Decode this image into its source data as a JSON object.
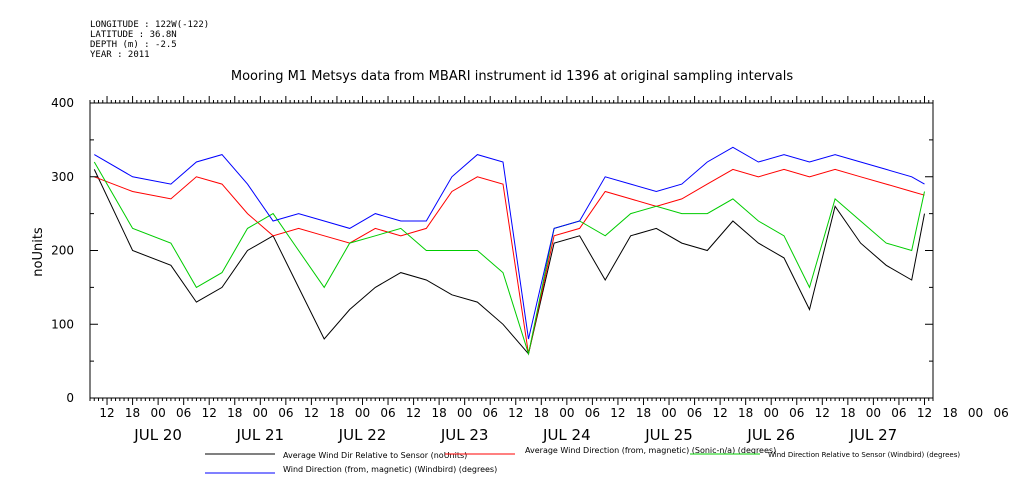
{
  "header": {
    "longitude": "LONGITUDE : 122W(-122)",
    "latitude": "LATITUDE : 36.8N",
    "depth": "DEPTH (m) : -2.5",
    "year": "YEAR : 2011"
  },
  "chart_data": {
    "type": "line",
    "title": "Mooring M1 Metsys data from MBARI instrument id 1396 at original sampling intervals",
    "ylabel": "noUnits",
    "xlabel": "",
    "ylim": [
      0,
      400
    ],
    "xlim": [
      "2011-07-19T08:00",
      "2011-07-27T14:00"
    ],
    "y_ticks": [
      0,
      100,
      200,
      300,
      400
    ],
    "hour_ticks": [
      "12",
      "18",
      "00",
      "06",
      "12",
      "18",
      "00",
      "06",
      "12",
      "18",
      "00",
      "06",
      "12",
      "18",
      "00",
      "06",
      "12",
      "18",
      "00",
      "06",
      "12",
      "18",
      "00",
      "06",
      "12",
      "18",
      "00",
      "06",
      "12",
      "18",
      "00",
      "06",
      "12",
      "18",
      "00",
      "06"
    ],
    "day_labels": [
      "JUL 20",
      "JUL 21",
      "JUL 22",
      "JUL 23",
      "JUL 24",
      "JUL 25",
      "JUL 26",
      "JUL 27"
    ],
    "grid": false,
    "legend_position": "bottom",
    "series": [
      {
        "name": "Average Wind Dir Relative to Sensor (noUnits)",
        "color": "#000000",
        "x": [
          "2011-07-19T09:00",
          "2011-07-19T18:00",
          "2011-07-20T03:00",
          "2011-07-20T09:00",
          "2011-07-20T15:00",
          "2011-07-20T21:00",
          "2011-07-21T03:00",
          "2011-07-21T09:00",
          "2011-07-21T15:00",
          "2011-07-21T21:00",
          "2011-07-22T03:00",
          "2011-07-22T09:00",
          "2011-07-22T15:00",
          "2011-07-22T21:00",
          "2011-07-23T03:00",
          "2011-07-23T09:00",
          "2011-07-23T15:00",
          "2011-07-23T21:00",
          "2011-07-24T03:00",
          "2011-07-24T09:00",
          "2011-07-24T15:00",
          "2011-07-24T21:00",
          "2011-07-25T03:00",
          "2011-07-25T09:00",
          "2011-07-25T15:00",
          "2011-07-25T21:00",
          "2011-07-26T03:00",
          "2011-07-26T09:00",
          "2011-07-26T15:00",
          "2011-07-26T21:00",
          "2011-07-27T03:00",
          "2011-07-27T09:00",
          "2011-07-27T12:00"
        ],
        "values": [
          310,
          200,
          180,
          130,
          150,
          200,
          220,
          150,
          80,
          120,
          150,
          170,
          160,
          140,
          130,
          100,
          60,
          210,
          220,
          160,
          220,
          230,
          210,
          200,
          240,
          210,
          190,
          120,
          260,
          210,
          180,
          160,
          250
        ]
      },
      {
        "name": "Average Wind Direction (from, magnetic) (Sonic-n/a) (degrees)",
        "color": "#ff0000",
        "x": [
          "2011-07-19T09:00",
          "2011-07-19T18:00",
          "2011-07-20T03:00",
          "2011-07-20T09:00",
          "2011-07-20T15:00",
          "2011-07-20T21:00",
          "2011-07-21T03:00",
          "2011-07-21T09:00",
          "2011-07-21T15:00",
          "2011-07-21T21:00",
          "2011-07-22T03:00",
          "2011-07-22T09:00",
          "2011-07-22T15:00",
          "2011-07-22T21:00",
          "2011-07-23T03:00",
          "2011-07-23T09:00",
          "2011-07-23T15:00",
          "2011-07-23T21:00",
          "2011-07-24T03:00",
          "2011-07-24T09:00",
          "2011-07-24T15:00",
          "2011-07-24T21:00",
          "2011-07-25T03:00",
          "2011-07-25T09:00",
          "2011-07-25T15:00",
          "2011-07-25T21:00",
          "2011-07-26T03:00",
          "2011-07-26T09:00",
          "2011-07-26T15:00",
          "2011-07-26T21:00",
          "2011-07-27T03:00",
          "2011-07-27T09:00",
          "2011-07-27T12:00"
        ],
        "values": [
          300,
          280,
          270,
          300,
          290,
          250,
          220,
          230,
          220,
          210,
          230,
          220,
          230,
          280,
          300,
          290,
          60,
          220,
          230,
          280,
          270,
          260,
          270,
          290,
          310,
          300,
          310,
          300,
          310,
          300,
          290,
          280,
          275
        ]
      },
      {
        "name": "Wind Direction Relative to Sensor (Windbird) (degrees)",
        "color": "#00cc00",
        "x": [
          "2011-07-19T09:00",
          "2011-07-19T18:00",
          "2011-07-20T03:00",
          "2011-07-20T09:00",
          "2011-07-20T15:00",
          "2011-07-20T21:00",
          "2011-07-21T03:00",
          "2011-07-21T09:00",
          "2011-07-21T15:00",
          "2011-07-21T21:00",
          "2011-07-22T03:00",
          "2011-07-22T09:00",
          "2011-07-22T15:00",
          "2011-07-22T21:00",
          "2011-07-23T03:00",
          "2011-07-23T09:00",
          "2011-07-23T15:00",
          "2011-07-23T21:00",
          "2011-07-24T03:00",
          "2011-07-24T09:00",
          "2011-07-24T15:00",
          "2011-07-24T21:00",
          "2011-07-25T03:00",
          "2011-07-25T09:00",
          "2011-07-25T15:00",
          "2011-07-25T21:00",
          "2011-07-26T03:00",
          "2011-07-26T09:00",
          "2011-07-26T15:00",
          "2011-07-26T21:00",
          "2011-07-27T03:00",
          "2011-07-27T09:00",
          "2011-07-27T12:00"
        ],
        "values": [
          320,
          230,
          210,
          150,
          170,
          230,
          250,
          200,
          150,
          210,
          220,
          230,
          200,
          200,
          200,
          170,
          60,
          230,
          240,
          220,
          250,
          260,
          250,
          250,
          270,
          240,
          220,
          150,
          270,
          240,
          210,
          200,
          280
        ]
      },
      {
        "name": "Wind Direction (from, magnetic) (Windbird) (degrees)",
        "color": "#0000ff",
        "x": [
          "2011-07-19T09:00",
          "2011-07-19T18:00",
          "2011-07-20T03:00",
          "2011-07-20T09:00",
          "2011-07-20T15:00",
          "2011-07-20T21:00",
          "2011-07-21T03:00",
          "2011-07-21T09:00",
          "2011-07-21T15:00",
          "2011-07-21T21:00",
          "2011-07-22T03:00",
          "2011-07-22T09:00",
          "2011-07-22T15:00",
          "2011-07-22T21:00",
          "2011-07-23T03:00",
          "2011-07-23T09:00",
          "2011-07-23T15:00",
          "2011-07-23T21:00",
          "2011-07-24T03:00",
          "2011-07-24T09:00",
          "2011-07-24T15:00",
          "2011-07-24T21:00",
          "2011-07-25T03:00",
          "2011-07-25T09:00",
          "2011-07-25T15:00",
          "2011-07-25T21:00",
          "2011-07-26T03:00",
          "2011-07-26T09:00",
          "2011-07-26T15:00",
          "2011-07-26T21:00",
          "2011-07-27T03:00",
          "2011-07-27T09:00",
          "2011-07-27T12:00"
        ],
        "values": [
          330,
          300,
          290,
          320,
          330,
          290,
          240,
          250,
          240,
          230,
          250,
          240,
          240,
          300,
          330,
          320,
          80,
          230,
          240,
          300,
          290,
          280,
          290,
          320,
          340,
          320,
          330,
          320,
          330,
          320,
          310,
          300,
          290
        ]
      }
    ]
  }
}
